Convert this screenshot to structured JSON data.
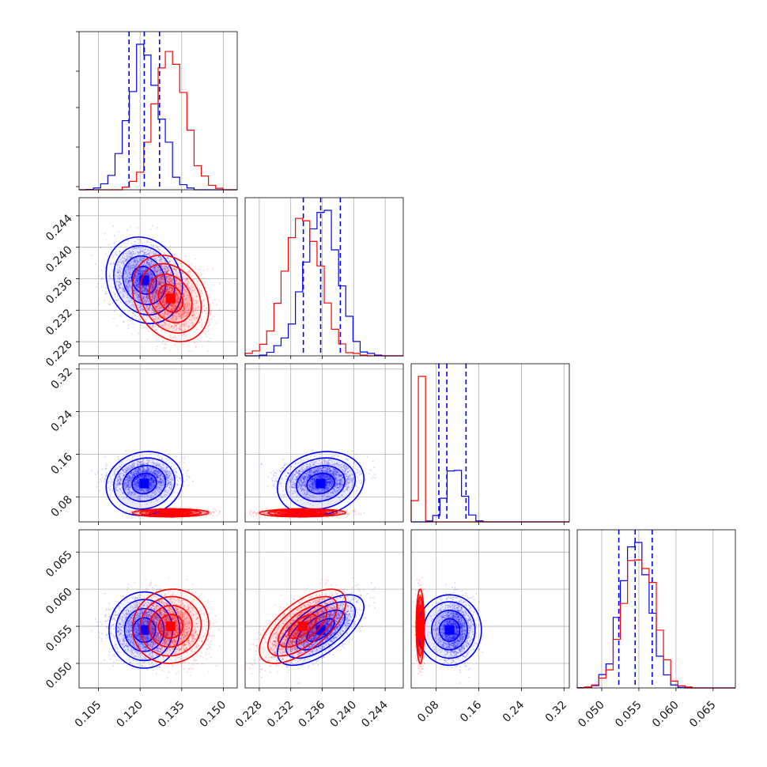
{
  "chart_data": {
    "type": "corner",
    "description": "Corner plot of 4 parameters comparing two posterior sample sets (blue and red). Diagonal: 1D histograms; off-diagonal: 2D density contours with scatter.",
    "xlabel": "",
    "ylabel": "",
    "colors": {
      "blue": "#0000ff",
      "red": "#ff0000",
      "grid": "#b0b0b0",
      "axis": "#000000"
    },
    "grid": true,
    "parameters": [
      {
        "index": 0,
        "range": [
          0.098,
          0.155
        ],
        "ticks": [
          0.105,
          0.12,
          0.135,
          0.15
        ],
        "tick_labels": [
          "0.105",
          "0.120",
          "0.135",
          "0.150"
        ]
      },
      {
        "index": 1,
        "range": [
          0.2262,
          0.2463
        ],
        "ticks": [
          0.228,
          0.232,
          0.236,
          0.24,
          0.244
        ],
        "tick_labels": [
          "0.228",
          "0.232",
          "0.236",
          "0.240",
          "0.244"
        ]
      },
      {
        "index": 2,
        "range": [
          0.033,
          0.33
        ],
        "ticks": [
          0.08,
          0.16,
          0.24,
          0.32
        ],
        "tick_labels": [
          "0.08",
          "0.16",
          "0.24",
          "0.32"
        ]
      },
      {
        "index": 3,
        "range": [
          0.0467,
          0.068
        ],
        "ticks": [
          0.05,
          0.055,
          0.06,
          0.065
        ],
        "tick_labels": [
          "0.050",
          "0.055",
          "0.060",
          "0.065"
        ]
      }
    ],
    "series": [
      {
        "color": "blue",
        "means": [
          0.1215,
          0.2358,
          0.105,
          0.0545
        ],
        "stds": [
          0.0055,
          0.0022,
          0.024,
          0.0019
        ],
        "quantiles": [
          [
            0.116,
            0.1215,
            0.127
          ],
          [
            0.2336,
            0.2358,
            0.2383
          ],
          [
            0.085,
            0.1,
            0.136
          ],
          [
            0.0523,
            0.0545,
            0.0568
          ]
        ],
        "correlations": {
          "0-1": -0.15,
          "0-2": 0.1,
          "0-3": 0.0,
          "1-2": 0.15,
          "1-3": 0.65,
          "2-3": 0.0
        }
      },
      {
        "color": "red",
        "means": [
          0.131,
          0.2335,
          0.05,
          0.055
        ],
        "stds": [
          0.0055,
          0.0022,
          0.003,
          0.002
        ],
        "correlations": {
          "0-1": -0.25,
          "0-2": 0.05,
          "0-3": 0.05,
          "1-2": 0.05,
          "1-3": 0.65,
          "2-3": 0.0
        }
      }
    ]
  }
}
